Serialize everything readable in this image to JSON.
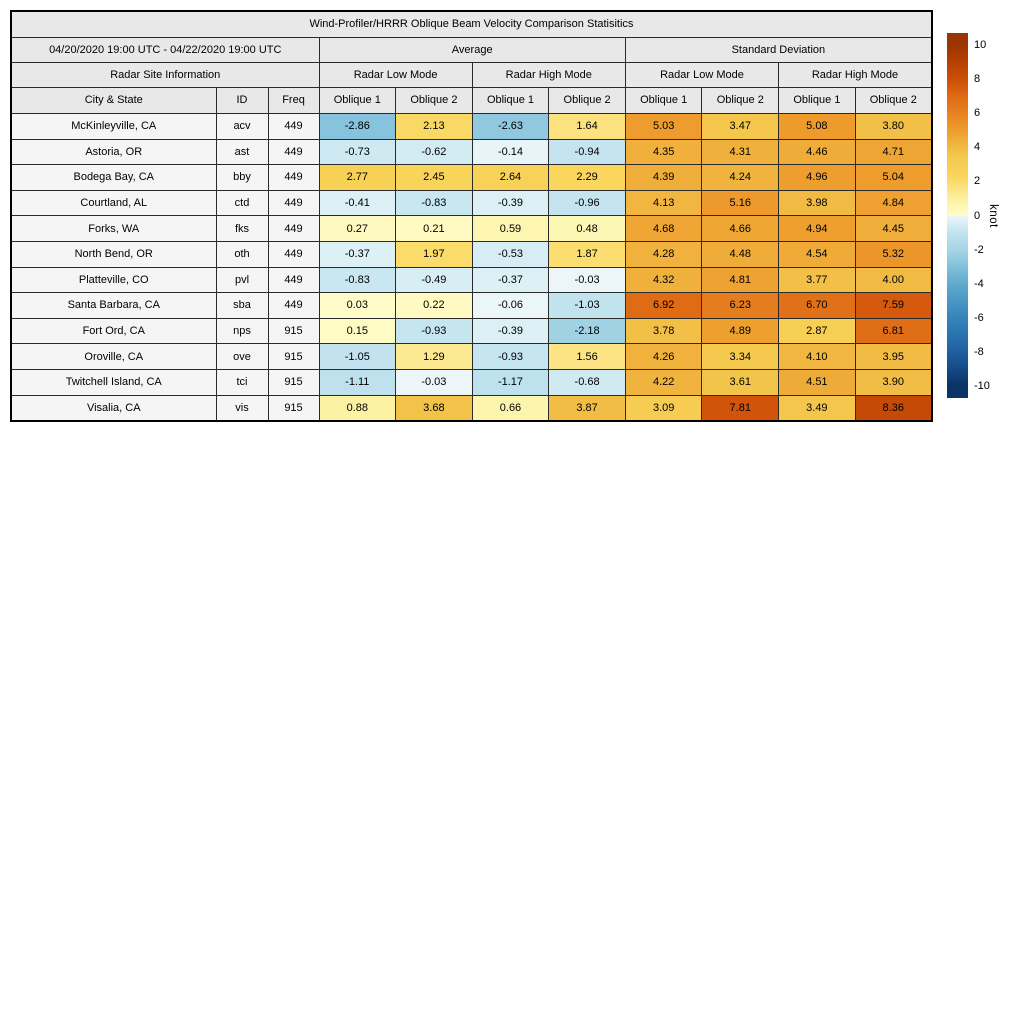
{
  "chart_data": {
    "type": "heatmap-table",
    "title": "Wind-Profiler/HRRR Oblique Beam Velocity Comparison Statisitics",
    "header": {
      "date_range": "04/20/2020 19:00 UTC - 04/22/2020 19:00 UTC",
      "groups": [
        "Average",
        "Standard Deviation"
      ],
      "site_info": "Radar Site Information",
      "modes": [
        "Radar Low Mode",
        "Radar High Mode",
        "Radar Low Mode",
        "Radar High Mode"
      ],
      "columns": [
        "City & State",
        "ID",
        "Freq"
      ],
      "oblique_columns": [
        "Oblique 1",
        "Oblique 2",
        "Oblique 1",
        "Oblique 2",
        "Oblique 1",
        "Oblique 2",
        "Oblique 1",
        "Oblique 2"
      ]
    },
    "rows": [
      {
        "city": "McKinleyville, CA",
        "id": "acv",
        "freq": "449",
        "values": [
          -2.86,
          2.13,
          -2.63,
          1.64,
          5.03,
          3.47,
          5.08,
          3.8
        ]
      },
      {
        "city": "Astoria, OR",
        "id": "ast",
        "freq": "449",
        "values": [
          -0.73,
          -0.62,
          -0.14,
          -0.94,
          4.35,
          4.31,
          4.46,
          4.71
        ]
      },
      {
        "city": "Bodega Bay, CA",
        "id": "bby",
        "freq": "449",
        "values": [
          2.77,
          2.45,
          2.64,
          2.29,
          4.39,
          4.24,
          4.96,
          5.04
        ]
      },
      {
        "city": "Courtland, AL",
        "id": "ctd",
        "freq": "449",
        "values": [
          -0.41,
          -0.83,
          -0.39,
          -0.96,
          4.13,
          5.16,
          3.98,
          4.84
        ]
      },
      {
        "city": "Forks, WA",
        "id": "fks",
        "freq": "449",
        "values": [
          0.27,
          0.21,
          0.59,
          0.48,
          4.68,
          4.66,
          4.94,
          4.45
        ]
      },
      {
        "city": "North Bend, OR",
        "id": "oth",
        "freq": "449",
        "values": [
          -0.37,
          1.97,
          -0.53,
          1.87,
          4.28,
          4.48,
          4.54,
          5.32
        ]
      },
      {
        "city": "Platteville, CO",
        "id": "pvl",
        "freq": "449",
        "values": [
          -0.83,
          -0.49,
          -0.37,
          -0.03,
          4.32,
          4.81,
          3.77,
          4.0
        ]
      },
      {
        "city": "Santa Barbara, CA",
        "id": "sba",
        "freq": "449",
        "values": [
          0.03,
          0.22,
          -0.06,
          -1.03,
          6.92,
          6.23,
          6.7,
          7.59
        ]
      },
      {
        "city": "Fort Ord, CA",
        "id": "nps",
        "freq": "915",
        "values": [
          0.15,
          -0.93,
          -0.39,
          -2.18,
          3.78,
          4.89,
          2.87,
          6.81
        ]
      },
      {
        "city": "Oroville, CA",
        "id": "ove",
        "freq": "915",
        "values": [
          -1.05,
          1.29,
          -0.93,
          1.56,
          4.26,
          3.34,
          4.1,
          3.95
        ]
      },
      {
        "city": "Twitchell Island, CA",
        "id": "tci",
        "freq": "915",
        "values": [
          -1.11,
          -0.03,
          -1.17,
          -0.68,
          4.22,
          3.61,
          4.51,
          3.9
        ]
      },
      {
        "city": "Visalia, CA",
        "id": "vis",
        "freq": "915",
        "values": [
          0.88,
          3.68,
          0.66,
          3.87,
          3.09,
          7.81,
          3.49,
          8.36
        ]
      }
    ],
    "colorbar": {
      "label": "knot",
      "ticks": [
        10,
        8,
        6,
        4,
        2,
        0,
        -2,
        -4,
        -6,
        -8,
        -10
      ],
      "vmin": -10,
      "vmax": 10,
      "extent": 10.7
    },
    "colormap": {
      "positive": [
        [
          0,
          "#fffccb"
        ],
        [
          0.5,
          "#fdf7b4"
        ],
        [
          1,
          "#fdef9e"
        ],
        [
          1.5,
          "#fce488"
        ],
        [
          2,
          "#fbda67"
        ],
        [
          2.5,
          "#f9d35a"
        ],
        [
          3,
          "#f6cd53"
        ],
        [
          3.5,
          "#f4c74c"
        ],
        [
          4,
          "#f1ba43"
        ],
        [
          4.5,
          "#efab38"
        ],
        [
          5,
          "#ee9d2d"
        ],
        [
          5.5,
          "#eb9026"
        ],
        [
          6,
          "#e78220"
        ],
        [
          6.5,
          "#e3761b"
        ],
        [
          7,
          "#de6914"
        ],
        [
          7.5,
          "#d75c0e"
        ],
        [
          8,
          "#cd4f07"
        ],
        [
          9,
          "#b54104"
        ],
        [
          10,
          "#9b3503"
        ]
      ],
      "negative": [
        [
          0,
          "#edf7f9"
        ],
        [
          0.5,
          "#d8eef5"
        ],
        [
          1,
          "#c2e3ee"
        ],
        [
          1.5,
          "#b3dcea"
        ],
        [
          2,
          "#a6d5e6"
        ],
        [
          2.5,
          "#95cce1"
        ],
        [
          3,
          "#82c0da"
        ],
        [
          3.5,
          "#71b5d3"
        ],
        [
          4,
          "#62aacd"
        ],
        [
          5,
          "#4897c4"
        ],
        [
          6,
          "#3585ba"
        ],
        [
          7,
          "#2a74ae"
        ],
        [
          8,
          "#205fa0"
        ],
        [
          9,
          "#154a85"
        ],
        [
          10,
          "#0b3365"
        ]
      ]
    }
  }
}
